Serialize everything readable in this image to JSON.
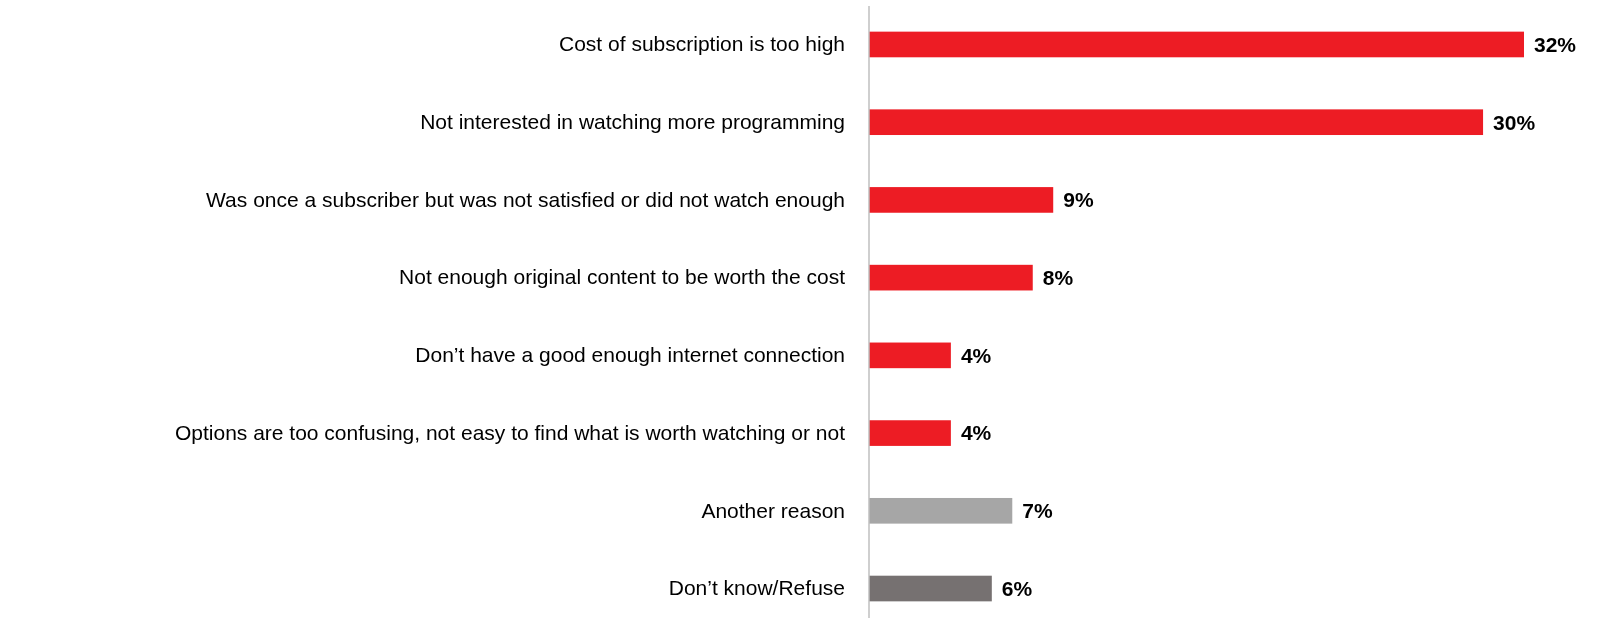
{
  "chart_data": {
    "type": "bar",
    "orientation": "horizontal",
    "categories": [
      "Cost of subscription is too high",
      "Not interested in watching more programming",
      "Was once a subscriber but was not satisfied or did not watch enough",
      "Not enough original content to be worth the cost",
      "Don’t have a good enough internet connection",
      "Options are too confusing, not easy to find what is worth watching or not",
      "Another reason",
      "Don’t know/Refuse"
    ],
    "values": [
      32,
      30,
      9,
      8,
      4,
      4,
      7,
      6
    ],
    "colors": [
      "#ed1c24",
      "#ed1c24",
      "#ed1c24",
      "#ed1c24",
      "#ed1c24",
      "#ed1c24",
      "#a6a6a6",
      "#767171"
    ],
    "value_labels": [
      "32%",
      "30%",
      "9%",
      "8%",
      "4%",
      "4%",
      "7%",
      "6%"
    ]
  }
}
